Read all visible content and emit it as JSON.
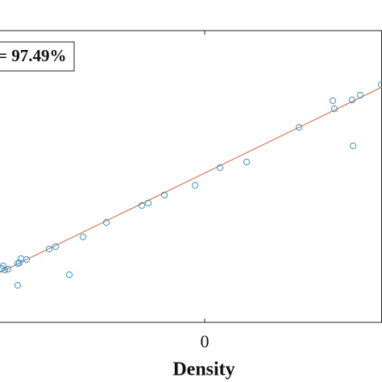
{
  "chart_data": {
    "type": "scatter",
    "x_label": "Density",
    "annotation": "= 97.49%",
    "xlim": [
      -2.54,
      2.2
    ],
    "ylim": [
      0,
      3.62
    ],
    "xticks": [
      0
    ],
    "series": [
      {
        "color": "#3a8fc2",
        "x": [
          -2.52,
          -2.48,
          -2.5,
          -2.44,
          -2.32,
          -2.28,
          -2.3,
          -2.21,
          -2.32,
          -1.93,
          -1.85,
          -1.68,
          -1.51,
          -1.22,
          -0.78,
          -0.7,
          -0.5,
          -0.12,
          0.19,
          0.52,
          1.17,
          1.59,
          1.61,
          1.83,
          1.93,
          2.19,
          1.84
        ],
        "y": [
          0.67,
          0.65,
          0.7,
          0.66,
          0.73,
          0.79,
          0.74,
          0.78,
          0.46,
          0.91,
          0.94,
          0.59,
          1.06,
          1.24,
          1.45,
          1.48,
          1.58,
          1.7,
          1.92,
          1.99,
          2.42,
          2.75,
          2.65,
          2.76,
          2.82,
          2.95,
          2.19
        ]
      }
    ],
    "fit": {
      "color": "#d9734f",
      "x": [
        -2.54,
        2.2
      ],
      "y": [
        0.62,
        2.92
      ]
    }
  }
}
